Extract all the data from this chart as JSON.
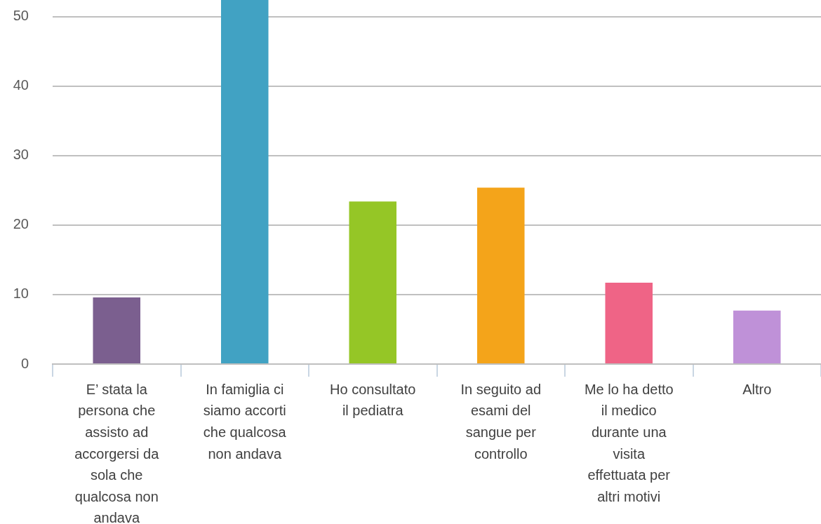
{
  "chart_data": {
    "type": "bar",
    "categories": [
      "E’ stata la persona che assisto ad accorgersi da sola che qualcosa non andava",
      "In famiglia ci siamo accorti che qualcosa non andava",
      "Ho consultato il pediatra",
      "In seguito ad esami del sangue per controllo",
      "Me lo ha detto il medico durante una visita effettuata per altri motivi",
      "Altro"
    ],
    "values": [
      9.6,
      52.4,
      23.4,
      25.4,
      11.7,
      7.7
    ],
    "colors": [
      "#7b5f8f",
      "#41a2c3",
      "#95c626",
      "#f4a41a",
      "#ef6486",
      "#bf91d8"
    ],
    "ylim": [
      0,
      52.4
    ],
    "yticks": [
      0,
      10,
      20,
      30,
      40,
      50
    ],
    "grid": "y"
  }
}
